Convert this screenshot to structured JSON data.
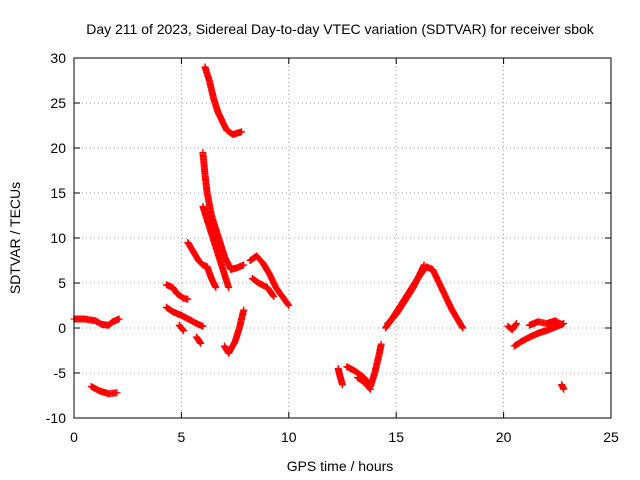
{
  "chart_data": {
    "type": "scatter",
    "title": "Day 211 of 2023, Sidereal Day-to-day VTEC variation (SDTVAR) for receiver sbok",
    "xlabel": "GPS time / hours",
    "ylabel": "SDTVAR / TECUs",
    "xlim": [
      0,
      25
    ],
    "ylim": [
      -10,
      30
    ],
    "xticks": [
      0,
      5,
      10,
      15,
      20,
      25
    ],
    "yticks": [
      -10,
      -5,
      0,
      5,
      10,
      15,
      20,
      25,
      30
    ],
    "xtick_labels": [
      "0",
      "5",
      "10",
      "15",
      "20",
      "25"
    ],
    "ytick_labels": [
      "-10",
      "-5",
      "0",
      "5",
      "10",
      "15",
      "20",
      "25",
      "30"
    ],
    "grid": true,
    "marker": "plus",
    "color": "#ff0000",
    "series": [
      {
        "name": "arc-1",
        "points": [
          [
            0.0,
            1.0
          ],
          [
            0.5,
            1.0
          ],
          [
            1.0,
            0.8
          ],
          [
            1.3,
            0.4
          ],
          [
            1.6,
            0.3
          ],
          [
            1.8,
            0.7
          ],
          [
            2.1,
            1.0
          ]
        ]
      },
      {
        "name": "arc-2",
        "points": [
          [
            0.8,
            -6.5
          ],
          [
            1.2,
            -7.0
          ],
          [
            1.6,
            -7.3
          ],
          [
            2.0,
            -7.2
          ]
        ]
      },
      {
        "name": "arc-3",
        "points": [
          [
            4.3,
            4.8
          ],
          [
            4.6,
            4.5
          ],
          [
            4.8,
            3.8
          ],
          [
            5.1,
            3.3
          ],
          [
            5.3,
            3.2
          ]
        ]
      },
      {
        "name": "arc-4",
        "points": [
          [
            4.3,
            2.3
          ],
          [
            4.6,
            1.8
          ],
          [
            5.0,
            1.4
          ],
          [
            5.4,
            0.9
          ],
          [
            5.7,
            0.5
          ],
          [
            6.0,
            0.2
          ]
        ]
      },
      {
        "name": "arc-5",
        "points": [
          [
            4.9,
            0.3
          ],
          [
            5.1,
            -0.3
          ]
        ]
      },
      {
        "name": "arc-6",
        "points": [
          [
            5.7,
            -1.0
          ],
          [
            5.9,
            -1.7
          ]
        ]
      },
      {
        "name": "arc-7",
        "points": [
          [
            5.3,
            9.5
          ],
          [
            5.6,
            8.3
          ],
          [
            5.8,
            7.5
          ],
          [
            6.0,
            7.0
          ],
          [
            6.2,
            6.8
          ],
          [
            6.4,
            5.5
          ],
          [
            6.6,
            4.5
          ]
        ]
      },
      {
        "name": "arc-8",
        "points": [
          [
            6.0,
            19.5
          ],
          [
            6.1,
            17.0
          ],
          [
            6.2,
            15.0
          ],
          [
            6.4,
            12.5
          ],
          [
            6.6,
            11.0
          ],
          [
            6.8,
            9.5
          ],
          [
            7.0,
            8.0
          ],
          [
            7.3,
            6.5
          ],
          [
            7.6,
            6.7
          ],
          [
            7.9,
            7.0
          ]
        ]
      },
      {
        "name": "arc-9",
        "points": [
          [
            6.0,
            13.5
          ],
          [
            6.2,
            12.0
          ],
          [
            6.4,
            10.5
          ],
          [
            6.6,
            9.0
          ],
          [
            6.8,
            7.5
          ],
          [
            7.0,
            6.0
          ],
          [
            7.2,
            4.5
          ]
        ]
      },
      {
        "name": "arc-10",
        "points": [
          [
            6.1,
            29.0
          ],
          [
            6.3,
            27.5
          ],
          [
            6.5,
            25.5
          ],
          [
            6.7,
            24.0
          ],
          [
            6.9,
            23.0
          ],
          [
            7.1,
            22.0
          ],
          [
            7.4,
            21.5
          ],
          [
            7.8,
            21.8
          ]
        ]
      },
      {
        "name": "arc-11",
        "points": [
          [
            7.0,
            -2.0
          ],
          [
            7.2,
            -2.8
          ],
          [
            7.5,
            -1.5
          ],
          [
            7.7,
            0.0
          ],
          [
            7.9,
            2.0
          ]
        ]
      },
      {
        "name": "arc-12",
        "points": [
          [
            8.2,
            7.5
          ],
          [
            8.5,
            8.0
          ],
          [
            8.8,
            7.2
          ],
          [
            9.1,
            6.0
          ],
          [
            9.4,
            4.5
          ],
          [
            9.7,
            3.5
          ],
          [
            10.0,
            2.5
          ]
        ]
      },
      {
        "name": "arc-13",
        "points": [
          [
            8.3,
            5.5
          ],
          [
            8.6,
            5.0
          ],
          [
            9.0,
            4.5
          ],
          [
            9.3,
            3.5
          ]
        ]
      },
      {
        "name": "arc-14",
        "points": [
          [
            12.3,
            -4.5
          ],
          [
            12.4,
            -5.5
          ],
          [
            12.5,
            -6.3
          ]
        ]
      },
      {
        "name": "arc-15",
        "points": [
          [
            12.7,
            -4.3
          ],
          [
            13.1,
            -4.8
          ],
          [
            13.5,
            -5.5
          ],
          [
            13.8,
            -6.5
          ],
          [
            14.0,
            -5.0
          ],
          [
            14.2,
            -3.0
          ],
          [
            14.3,
            -1.8
          ]
        ]
      },
      {
        "name": "arc-16",
        "points": [
          [
            13.2,
            -5.5
          ],
          [
            13.5,
            -6.0
          ],
          [
            13.8,
            -6.8
          ]
        ]
      },
      {
        "name": "arc-17",
        "points": [
          [
            14.5,
            0.0
          ],
          [
            14.8,
            1.0
          ],
          [
            15.2,
            2.5
          ],
          [
            15.6,
            4.0
          ],
          [
            16.0,
            5.5
          ],
          [
            16.4,
            6.8
          ],
          [
            16.7,
            6.5
          ],
          [
            17.0,
            5.0
          ],
          [
            17.3,
            3.5
          ],
          [
            17.6,
            2.0
          ],
          [
            17.9,
            0.8
          ],
          [
            18.1,
            0.0
          ]
        ]
      },
      {
        "name": "arc-18",
        "points": [
          [
            14.6,
            0.5
          ],
          [
            15.0,
            1.5
          ],
          [
            15.4,
            3.0
          ],
          [
            15.8,
            4.5
          ],
          [
            16.1,
            6.0
          ],
          [
            16.3,
            7.0
          ]
        ]
      },
      {
        "name": "arc-19",
        "points": [
          [
            20.2,
            0.2
          ],
          [
            20.4,
            -0.2
          ],
          [
            20.6,
            0.5
          ]
        ]
      },
      {
        "name": "arc-20",
        "points": [
          [
            20.5,
            -2.0
          ],
          [
            20.9,
            -1.4
          ],
          [
            21.3,
            -0.9
          ],
          [
            21.7,
            -0.5
          ],
          [
            22.1,
            -0.2
          ],
          [
            22.5,
            0.2
          ],
          [
            22.8,
            0.5
          ]
        ]
      },
      {
        "name": "arc-21",
        "points": [
          [
            21.2,
            0.3
          ],
          [
            21.6,
            0.7
          ],
          [
            22.0,
            0.5
          ],
          [
            22.4,
            0.8
          ],
          [
            22.7,
            0.4
          ]
        ]
      },
      {
        "name": "arc-22",
        "points": [
          [
            22.7,
            -6.3
          ],
          [
            22.8,
            -6.8
          ]
        ]
      }
    ]
  }
}
